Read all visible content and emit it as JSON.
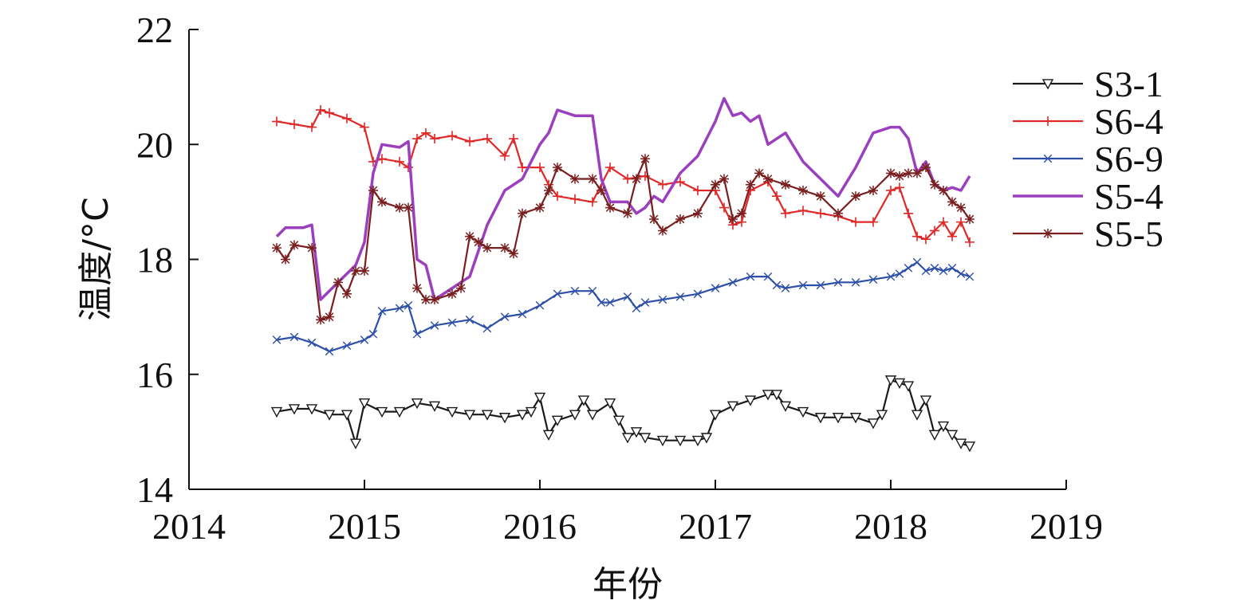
{
  "chart_data": {
    "type": "line",
    "xlabel": "年份",
    "ylabel": "温度/°C",
    "xlim": [
      2014,
      2019
    ],
    "ylim": [
      14,
      22
    ],
    "x_ticks": [
      "2014",
      "2015",
      "2016",
      "2017",
      "2018",
      "2019"
    ],
    "y_ticks": [
      "14",
      "16",
      "18",
      "20",
      "22"
    ],
    "grid": false,
    "legend_position": "top-right",
    "series": [
      {
        "name": "S3-1",
        "color": "#1a1a1a",
        "marker": "triangle-down",
        "x": [
          2014.5,
          2014.6,
          2014.7,
          2014.8,
          2014.9,
          2014.95,
          2015.0,
          2015.1,
          2015.2,
          2015.3,
          2015.4,
          2015.5,
          2015.6,
          2015.7,
          2015.8,
          2015.9,
          2015.95,
          2016.0,
          2016.05,
          2016.1,
          2016.2,
          2016.25,
          2016.3,
          2016.4,
          2016.45,
          2016.5,
          2016.55,
          2016.6,
          2016.7,
          2016.8,
          2016.9,
          2016.95,
          2017.0,
          2017.1,
          2017.2,
          2017.3,
          2017.35,
          2017.4,
          2017.5,
          2017.6,
          2017.7,
          2017.8,
          2017.9,
          2017.95,
          2018.0,
          2018.05,
          2018.1,
          2018.15,
          2018.2,
          2018.25,
          2018.3,
          2018.35,
          2018.4,
          2018.45
        ],
        "y": [
          15.35,
          15.4,
          15.4,
          15.3,
          15.3,
          14.8,
          15.5,
          15.35,
          15.35,
          15.5,
          15.45,
          15.35,
          15.3,
          15.3,
          15.25,
          15.3,
          15.35,
          15.6,
          14.95,
          15.2,
          15.3,
          15.55,
          15.3,
          15.5,
          15.2,
          14.9,
          15.0,
          14.9,
          14.85,
          14.85,
          14.85,
          14.9,
          15.3,
          15.45,
          15.55,
          15.65,
          15.65,
          15.45,
          15.35,
          15.25,
          15.25,
          15.25,
          15.15,
          15.3,
          15.9,
          15.85,
          15.8,
          15.3,
          15.55,
          14.95,
          15.1,
          14.95,
          14.8,
          14.75
        ]
      },
      {
        "name": "S6-4",
        "color": "#e02828",
        "marker": "plus",
        "x": [
          2014.5,
          2014.6,
          2014.7,
          2014.75,
          2014.8,
          2014.9,
          2015.0,
          2015.05,
          2015.1,
          2015.2,
          2015.25,
          2015.3,
          2015.35,
          2015.4,
          2015.5,
          2015.6,
          2015.7,
          2015.8,
          2015.85,
          2015.9,
          2016.0,
          2016.05,
          2016.1,
          2016.2,
          2016.3,
          2016.4,
          2016.5,
          2016.6,
          2016.7,
          2016.8,
          2016.9,
          2017.0,
          2017.05,
          2017.1,
          2017.15,
          2017.2,
          2017.3,
          2017.35,
          2017.4,
          2017.5,
          2017.6,
          2017.7,
          2017.8,
          2017.9,
          2018.0,
          2018.05,
          2018.1,
          2018.15,
          2018.2,
          2018.25,
          2018.3,
          2018.35,
          2018.4,
          2018.45
        ],
        "y": [
          20.4,
          20.35,
          20.3,
          20.6,
          20.55,
          20.45,
          20.3,
          19.7,
          19.75,
          19.7,
          19.6,
          20.1,
          20.2,
          20.1,
          20.15,
          20.05,
          20.1,
          19.8,
          20.1,
          19.6,
          19.6,
          19.3,
          19.1,
          19.05,
          19.0,
          19.6,
          19.4,
          19.45,
          19.3,
          19.35,
          19.2,
          19.2,
          18.9,
          18.6,
          18.65,
          19.2,
          19.35,
          19.1,
          18.8,
          18.85,
          18.8,
          18.75,
          18.65,
          18.65,
          19.2,
          19.25,
          18.8,
          18.4,
          18.35,
          18.5,
          18.65,
          18.4,
          18.65,
          18.3
        ]
      },
      {
        "name": "S6-9",
        "color": "#2d4fa8",
        "marker": "x",
        "x": [
          2014.5,
          2014.6,
          2014.7,
          2014.8,
          2014.9,
          2015.0,
          2015.05,
          2015.1,
          2015.2,
          2015.25,
          2015.3,
          2015.4,
          2015.5,
          2015.6,
          2015.7,
          2015.8,
          2015.9,
          2016.0,
          2016.1,
          2016.2,
          2016.3,
          2016.35,
          2016.4,
          2016.5,
          2016.55,
          2016.6,
          2016.7,
          2016.8,
          2016.9,
          2017.0,
          2017.1,
          2017.2,
          2017.3,
          2017.35,
          2017.4,
          2017.5,
          2017.6,
          2017.7,
          2017.8,
          2017.9,
          2018.0,
          2018.05,
          2018.1,
          2018.15,
          2018.2,
          2018.25,
          2018.3,
          2018.35,
          2018.4,
          2018.45
        ],
        "y": [
          16.6,
          16.65,
          16.55,
          16.4,
          16.5,
          16.6,
          16.7,
          17.1,
          17.15,
          17.2,
          16.7,
          16.85,
          16.9,
          16.95,
          16.8,
          17.0,
          17.05,
          17.2,
          17.4,
          17.45,
          17.45,
          17.25,
          17.25,
          17.35,
          17.15,
          17.25,
          17.3,
          17.35,
          17.4,
          17.5,
          17.6,
          17.7,
          17.7,
          17.55,
          17.5,
          17.55,
          17.55,
          17.6,
          17.6,
          17.65,
          17.7,
          17.75,
          17.85,
          17.95,
          17.8,
          17.85,
          17.8,
          17.85,
          17.75,
          17.7
        ]
      },
      {
        "name": "S5-4",
        "color": "#9b3fbf",
        "marker": "none",
        "x": [
          2014.5,
          2014.55,
          2014.65,
          2014.7,
          2014.75,
          2014.85,
          2014.95,
          2015.0,
          2015.05,
          2015.1,
          2015.2,
          2015.25,
          2015.3,
          2015.35,
          2015.4,
          2015.5,
          2015.6,
          2015.7,
          2015.8,
          2015.9,
          2016.0,
          2016.05,
          2016.1,
          2016.2,
          2016.3,
          2016.35,
          2016.4,
          2016.5,
          2016.55,
          2016.6,
          2016.65,
          2016.7,
          2016.8,
          2016.9,
          2017.0,
          2017.05,
          2017.1,
          2017.15,
          2017.2,
          2017.25,
          2017.3,
          2017.4,
          2017.5,
          2017.6,
          2017.7,
          2017.8,
          2017.9,
          2018.0,
          2018.05,
          2018.1,
          2018.15,
          2018.2,
          2018.25,
          2018.3,
          2018.35,
          2018.4,
          2018.45
        ],
        "y": [
          18.4,
          18.55,
          18.55,
          18.6,
          17.3,
          17.6,
          17.9,
          18.3,
          19.5,
          20.0,
          19.95,
          20.05,
          18.0,
          17.9,
          17.3,
          17.5,
          17.7,
          18.6,
          19.2,
          19.4,
          20.0,
          20.2,
          20.6,
          20.5,
          20.5,
          19.4,
          19.0,
          19.0,
          18.8,
          18.9,
          19.1,
          19.0,
          19.5,
          19.8,
          20.4,
          20.8,
          20.5,
          20.55,
          20.4,
          20.5,
          20.0,
          20.2,
          19.7,
          19.4,
          19.1,
          19.6,
          20.2,
          20.3,
          20.3,
          20.1,
          19.5,
          19.7,
          19.3,
          19.2,
          19.25,
          19.2,
          19.45
        ]
      },
      {
        "name": "S5-5",
        "color": "#7a1f1f",
        "marker": "asterisk",
        "x": [
          2014.5,
          2014.55,
          2014.6,
          2014.7,
          2014.75,
          2014.8,
          2014.85,
          2014.9,
          2014.95,
          2015.0,
          2015.05,
          2015.1,
          2015.2,
          2015.25,
          2015.3,
          2015.35,
          2015.4,
          2015.5,
          2015.55,
          2015.6,
          2015.65,
          2015.7,
          2015.8,
          2015.85,
          2015.9,
          2016.0,
          2016.05,
          2016.1,
          2016.2,
          2016.3,
          2016.35,
          2016.4,
          2016.5,
          2016.55,
          2016.6,
          2016.65,
          2016.7,
          2016.8,
          2016.9,
          2017.0,
          2017.05,
          2017.1,
          2017.15,
          2017.2,
          2017.25,
          2017.3,
          2017.4,
          2017.5,
          2017.6,
          2017.7,
          2017.8,
          2017.9,
          2018.0,
          2018.05,
          2018.1,
          2018.15,
          2018.2,
          2018.25,
          2018.3,
          2018.35,
          2018.4,
          2018.45
        ],
        "y": [
          18.2,
          18.0,
          18.25,
          18.2,
          16.95,
          17.0,
          17.6,
          17.4,
          17.8,
          17.8,
          19.2,
          19.0,
          18.9,
          18.9,
          17.5,
          17.3,
          17.3,
          17.4,
          17.5,
          18.4,
          18.3,
          18.2,
          18.2,
          18.1,
          18.8,
          18.9,
          19.2,
          19.6,
          19.4,
          19.4,
          19.2,
          18.9,
          18.8,
          19.4,
          19.75,
          18.7,
          18.5,
          18.7,
          18.8,
          19.3,
          19.4,
          18.7,
          18.8,
          19.3,
          19.5,
          19.4,
          19.3,
          19.2,
          19.1,
          18.8,
          19.1,
          19.2,
          19.5,
          19.45,
          19.5,
          19.5,
          19.6,
          19.3,
          19.2,
          19.0,
          18.9,
          18.7
        ]
      }
    ]
  }
}
